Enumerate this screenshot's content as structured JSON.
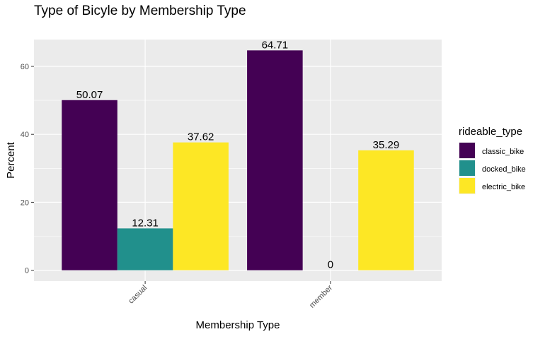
{
  "chart_data": {
    "type": "bar",
    "title": "Type of Bicyle by Membership Type",
    "xlabel": "Membership Type",
    "ylabel": "Percent",
    "categories": [
      "casual",
      "member"
    ],
    "series": [
      {
        "name": "classic_bike",
        "color": "#440154",
        "values": [
          50.07,
          64.71
        ]
      },
      {
        "name": "docked_bike",
        "color": "#21908C",
        "values": [
          12.31,
          0
        ]
      },
      {
        "name": "electric_bike",
        "color": "#FDE725",
        "values": [
          37.62,
          35.29
        ]
      }
    ],
    "data_labels": [
      [
        "50.07",
        "12.31",
        "37.62"
      ],
      [
        "64.71",
        "0",
        "35.29"
      ]
    ],
    "yticks": [
      0,
      20,
      40,
      60
    ],
    "ytick_labels": [
      "0",
      "20",
      "40",
      "60"
    ],
    "ylim": [
      -3.2,
      67.9
    ],
    "grid": true,
    "legend": {
      "title": "rideable_type",
      "position": "right"
    },
    "x_tick_label_rotation": "45 degrees"
  }
}
